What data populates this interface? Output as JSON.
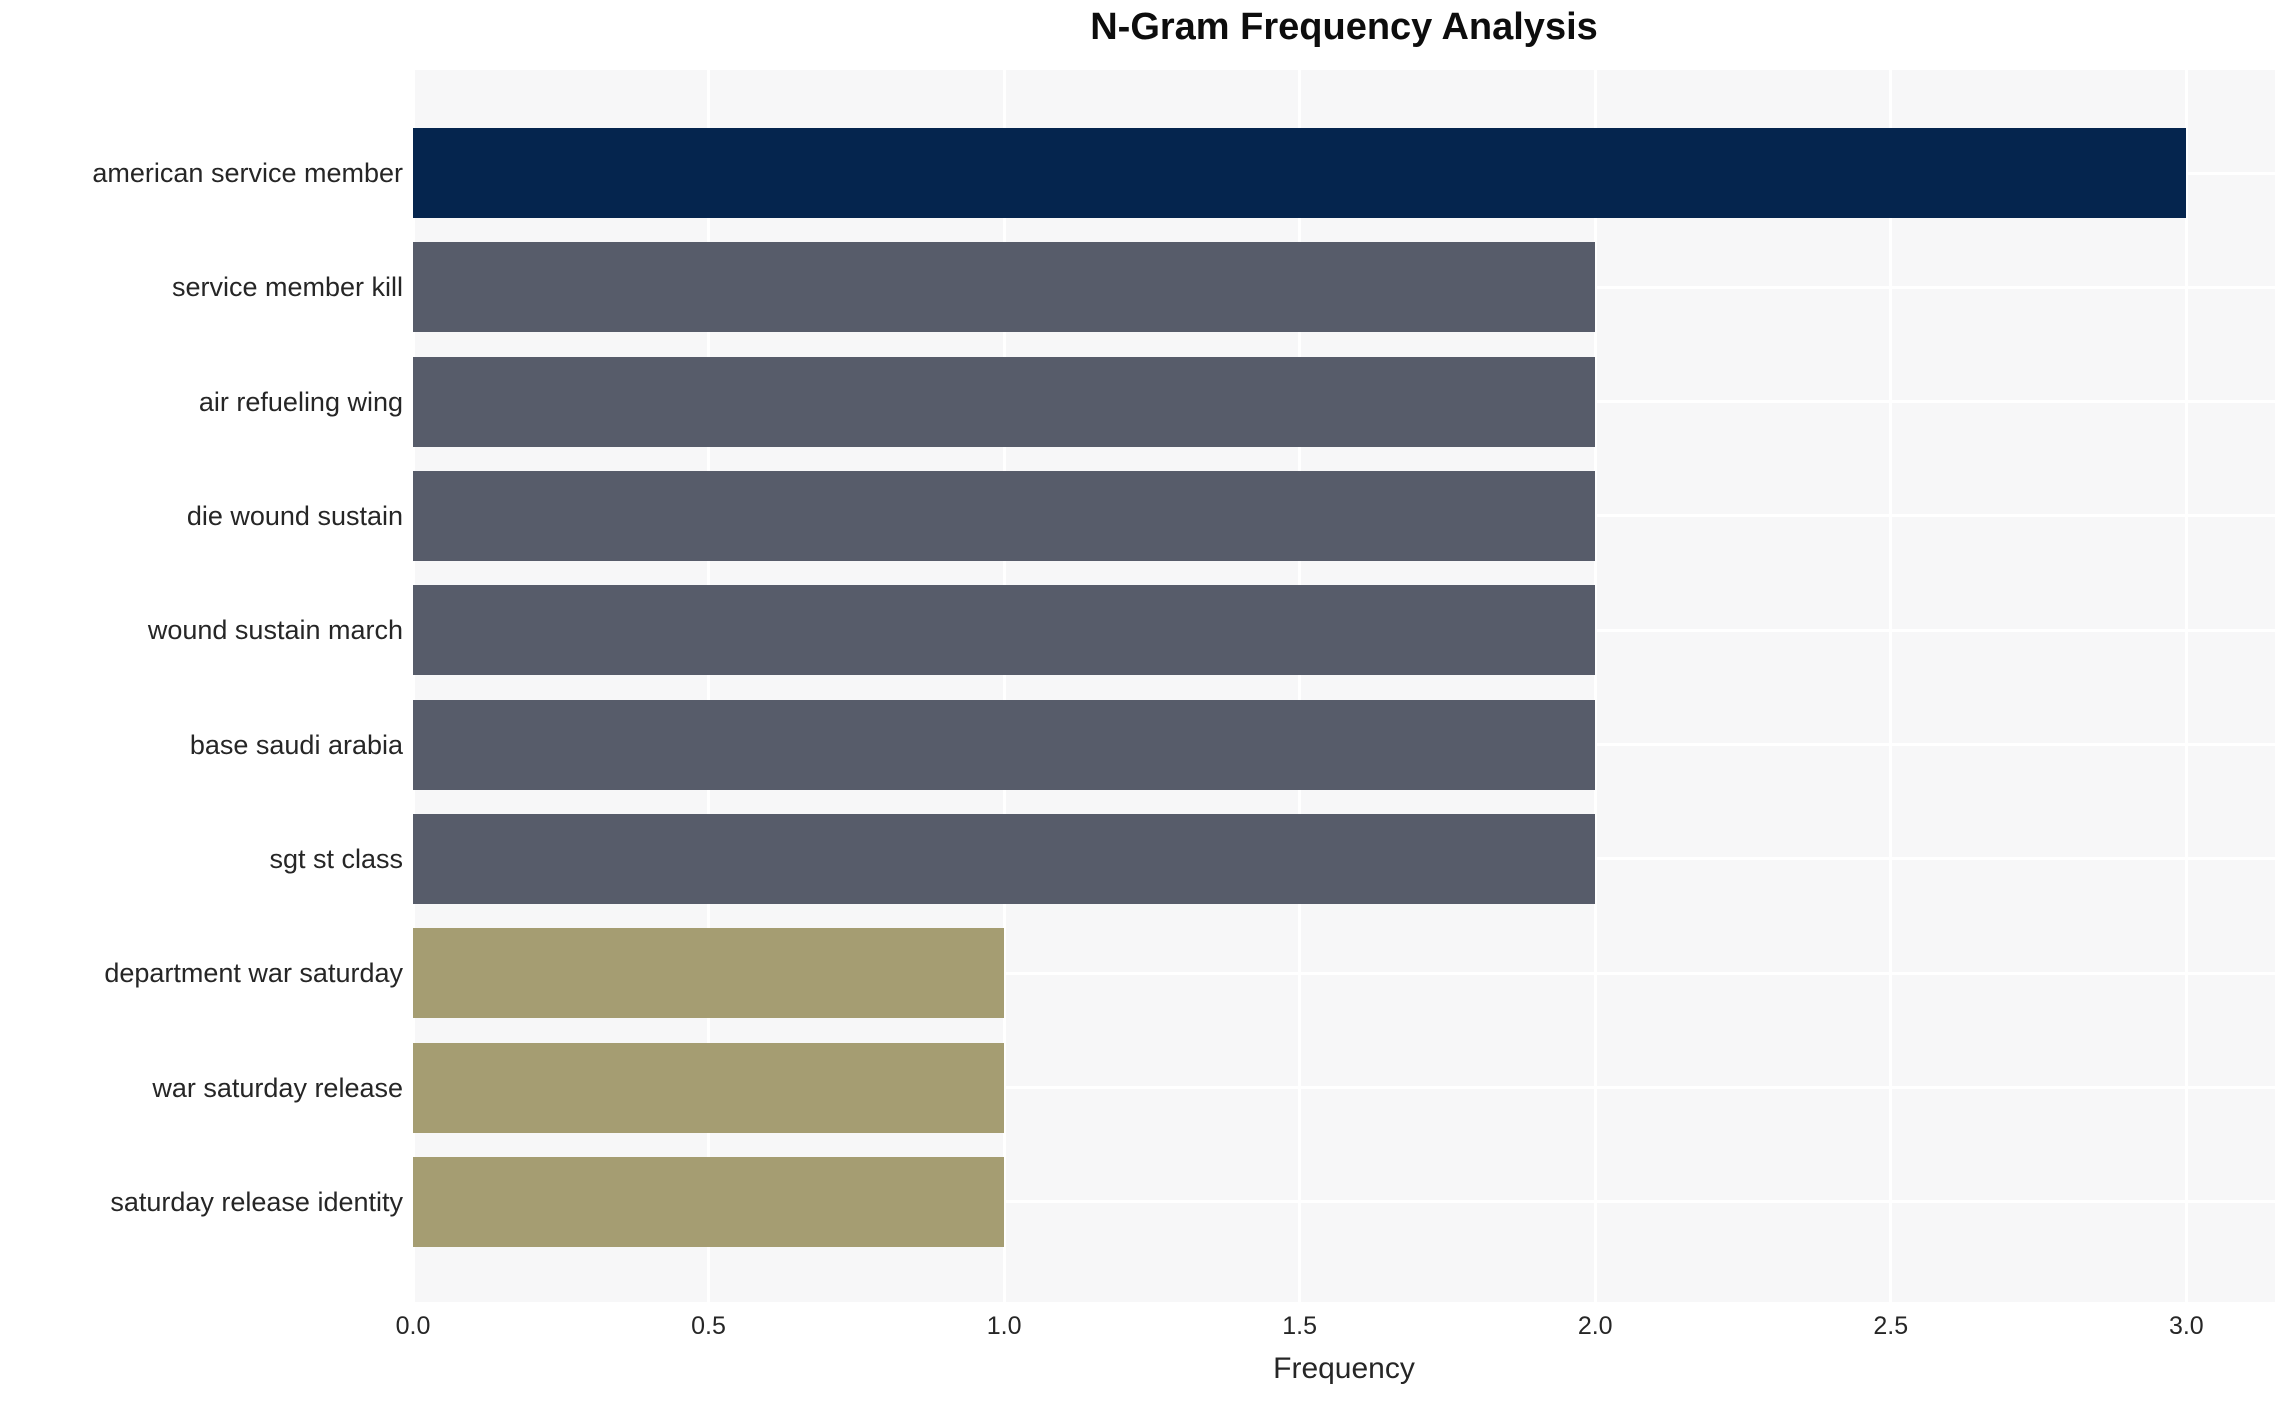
{
  "figure": {
    "background": "#ffffff",
    "plot_background": "#f7f7f8",
    "gridline_color": "#ffffff",
    "text_color": "#262626"
  },
  "chart_data": {
    "type": "bar",
    "orientation": "horizontal",
    "title": "N-Gram Frequency Analysis",
    "xlabel": "Frequency",
    "ylabel": "",
    "categories": [
      "american service member",
      "service member kill",
      "air refueling wing",
      "die wound sustain",
      "wound sustain march",
      "base saudi arabia",
      "sgt st class",
      "department war saturday",
      "war saturday release",
      "saturday release identity"
    ],
    "values": [
      3,
      2,
      2,
      2,
      2,
      2,
      2,
      1,
      1,
      1
    ],
    "bar_colors": [
      "#05254e",
      "#575c6a",
      "#575c6a",
      "#575c6a",
      "#575c6a",
      "#575c6a",
      "#575c6a",
      "#a59d72",
      "#a59d72",
      "#a59d72"
    ],
    "xticks": [
      0,
      0.5,
      1,
      1.5,
      2,
      2.5,
      3
    ],
    "xtick_labels": [
      "0.0",
      "0.5",
      "1.0",
      "1.5",
      "2.0",
      "2.5",
      "3.0"
    ],
    "xlim": [
      0,
      3.15
    ],
    "grid": true,
    "legend_position": "none"
  }
}
